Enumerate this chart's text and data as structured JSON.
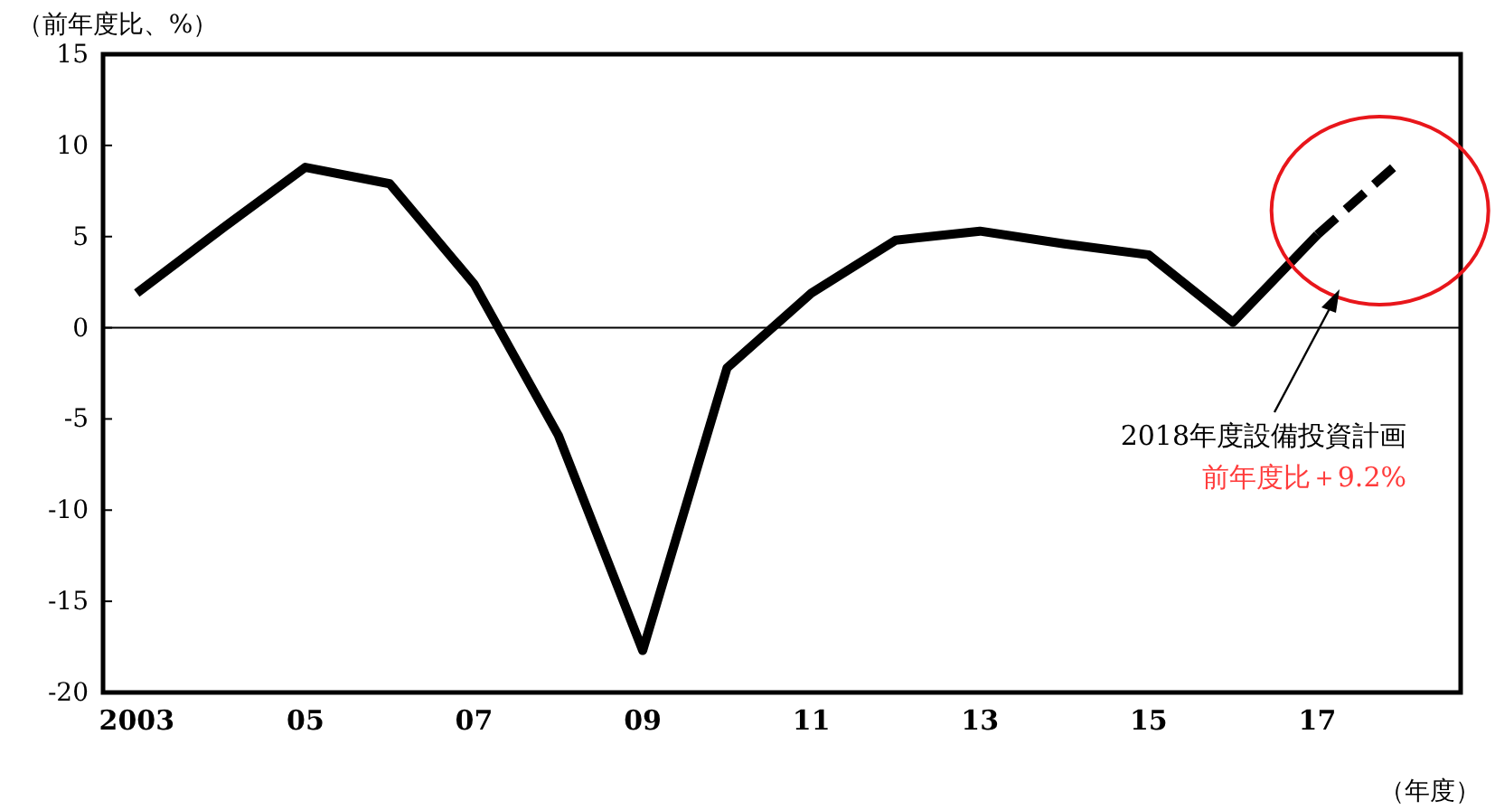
{
  "chart_data": {
    "type": "line",
    "ylabel": "（前年度比、%）",
    "xlabel": "（年度）",
    "xlim": [
      2002.6,
      2018.7
    ],
    "xticks": [
      {
        "value": 2003,
        "label": "2003"
      },
      {
        "value": 2005,
        "label": "05"
      },
      {
        "value": 2007,
        "label": "07"
      },
      {
        "value": 2009,
        "label": "09"
      },
      {
        "value": 2011,
        "label": "11"
      },
      {
        "value": 2013,
        "label": "13"
      },
      {
        "value": 2015,
        "label": "15"
      },
      {
        "value": 2017,
        "label": "17"
      }
    ],
    "ylim": [
      -20,
      15
    ],
    "yticks": [
      -20,
      -15,
      -10,
      -5,
      0,
      5,
      10,
      15
    ],
    "series": [
      {
        "color": "#000000",
        "line_style": "solid",
        "x": [
          2003,
          2004,
          2005,
          2006,
          2007,
          2008,
          2009,
          2010,
          2011,
          2012,
          2013,
          2014,
          2015,
          2016,
          2017
        ],
        "values": [
          1.9,
          5.4,
          8.8,
          7.9,
          2.4,
          -5.9,
          -17.7,
          -2.2,
          1.9,
          4.8,
          5.3,
          4.6,
          4.0,
          0.3,
          5.1
        ]
      },
      {
        "color": "#000000",
        "line_style": "dashed",
        "x": [
          2017,
          2018
        ],
        "values": [
          5.1,
          9.2
        ]
      }
    ],
    "ref_lines": [
      {
        "axis": "y",
        "value": 0,
        "color": "#000000"
      }
    ],
    "annotations": [
      "2018年度設備投資計画",
      "前年度比＋9.2%"
    ],
    "grid": false,
    "marker": "none"
  }
}
